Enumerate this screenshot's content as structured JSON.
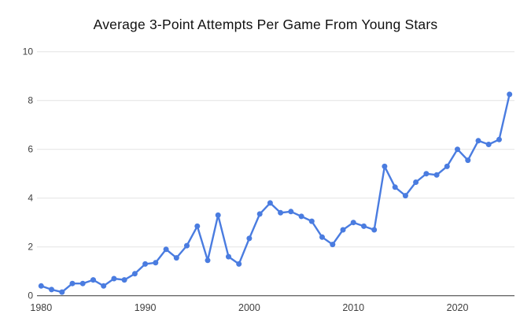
{
  "chart_data": {
    "type": "line",
    "title": "Average 3-Point Attempts Per Game From Young Stars",
    "series_name": "Average 3-point attempts per game",
    "x": [
      1980,
      1981,
      1982,
      1983,
      1984,
      1985,
      1986,
      1987,
      1988,
      1989,
      1990,
      1991,
      1992,
      1993,
      1994,
      1995,
      1996,
      1997,
      1998,
      1999,
      2000,
      2001,
      2002,
      2003,
      2004,
      2005,
      2006,
      2007,
      2008,
      2009,
      2010,
      2011,
      2012,
      2013,
      2014,
      2015,
      2016,
      2017,
      2018,
      2019,
      2020,
      2021,
      2022,
      2023,
      2024,
      2025
    ],
    "values": [
      0.4,
      0.25,
      0.15,
      0.5,
      0.5,
      0.65,
      0.4,
      0.7,
      0.65,
      0.9,
      1.3,
      1.35,
      1.9,
      1.55,
      2.05,
      2.85,
      1.45,
      3.3,
      1.6,
      1.3,
      2.35,
      3.35,
      3.8,
      3.4,
      3.45,
      3.25,
      3.05,
      2.4,
      2.1,
      2.7,
      3.0,
      2.85,
      2.7,
      5.3,
      4.45,
      4.1,
      4.65,
      5.0,
      4.95,
      5.3,
      6.0,
      5.55,
      6.35,
      6.2,
      6.4,
      8.25
    ],
    "xlim": [
      1980,
      2025
    ],
    "ylim": [
      0,
      10
    ],
    "xticks": [
      1980,
      1990,
      2000,
      2010,
      2020
    ],
    "yticks": [
      0,
      2,
      4,
      6,
      8,
      10
    ],
    "grid": "horizontal",
    "legend": "none",
    "colors": {
      "line": "#4a7ce0",
      "point": "#4a7ce0",
      "grid": "#e3e3e3",
      "baseline": "#333333",
      "tick_label": "#3f3f3f",
      "title": "#111111",
      "background": "#ffffff"
    }
  }
}
